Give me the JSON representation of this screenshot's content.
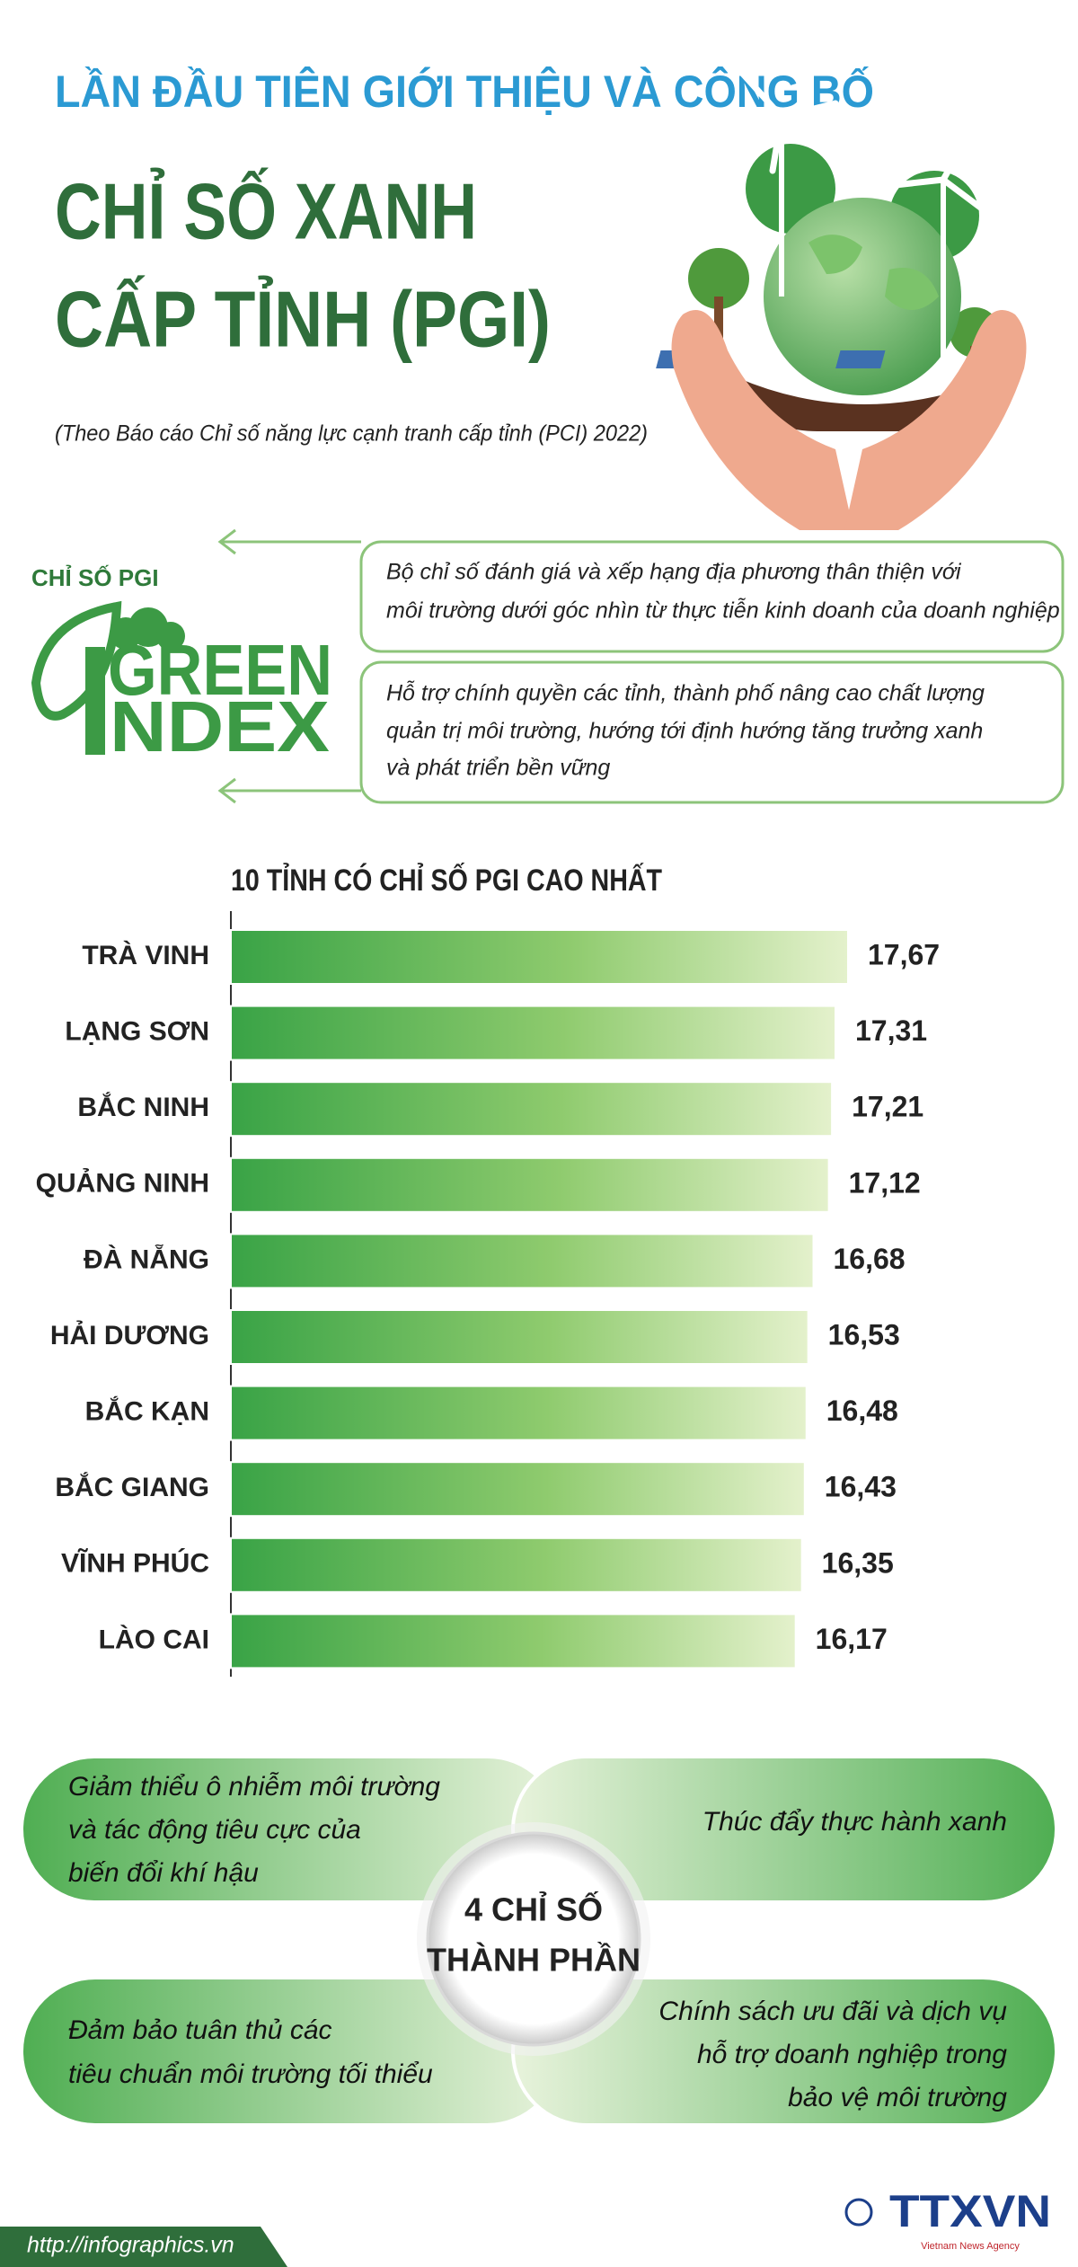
{
  "header": {
    "kicker": "LẦN ĐẦU TIÊN GIỚI THIỆU VÀ CÔNG BỐ",
    "title_lines": [
      "CHỈ SỐ XANH",
      "CẤP TỈNH (PGI)"
    ],
    "source": "(Theo Báo cáo Chỉ số năng lực cạnh tranh cấp tỉnh (PCI) 2022)"
  },
  "pgi": {
    "label": "CHỈ SỐ PGI",
    "logo": [
      "GREEN",
      "NDEX"
    ],
    "descriptions": [
      [
        "Bộ chỉ số đánh giá và xếp hạng địa phương thân thiện với",
        "môi trường dưới góc nhìn từ thực tiễn kinh doanh của doanh nghiệp"
      ],
      [
        "Hỗ trợ chính quyền các tỉnh, thành phố nâng cao chất lượng",
        "quản trị môi trường, hướng tới định hướng tăng trưởng xanh",
        "và phát triển bền vững"
      ]
    ]
  },
  "chart_data": {
    "type": "bar",
    "orientation": "horizontal",
    "title": "10 TỈNH CÓ CHỈ SỐ PGI CAO NHẤT",
    "categories": [
      "TRÀ VINH",
      "LẠNG SƠN",
      "BẮC NINH",
      "QUẢNG NINH",
      "ĐÀ NẴNG",
      "HẢI DƯƠNG",
      "BẮC KẠN",
      "BẮC GIANG",
      "VĨNH PHÚC",
      "LÀO CAI"
    ],
    "values": [
      17.67,
      17.31,
      17.21,
      17.12,
      16.68,
      16.53,
      16.48,
      16.43,
      16.35,
      16.17
    ],
    "value_labels": [
      "17,67",
      "17,31",
      "17,21",
      "17,12",
      "16,68",
      "16,53",
      "16,48",
      "16,43",
      "16,35",
      "16,17"
    ],
    "color": "#3fa648"
  },
  "components": {
    "center": [
      "4 CHỈ SỐ",
      "THÀNH PHẦN"
    ],
    "items": [
      [
        "Giảm thiểu ô nhiễm môi trường",
        "và tác động tiêu cực của",
        "biến đổi khí hậu"
      ],
      [
        "Thúc đẩy thực hành xanh"
      ],
      [
        "Đảm bảo tuân thủ các",
        "tiêu chuẩn môi trường tối thiểu"
      ],
      [
        "Chính sách ưu đãi và dịch vụ",
        "hỗ trợ doanh nghiệp trong",
        "bảo vệ môi trường"
      ]
    ]
  },
  "footer": {
    "url": "http://infographics.vn",
    "logo": "TTXVN",
    "agency": "Vietnam News Agency"
  }
}
